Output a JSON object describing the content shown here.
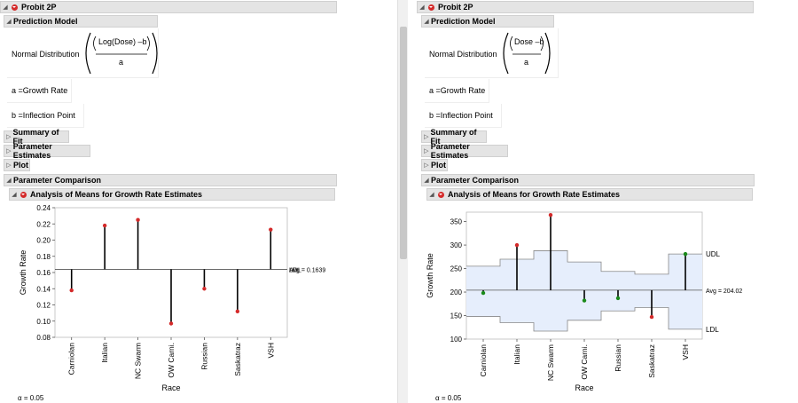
{
  "left": {
    "title": "Probit 2P",
    "model_header": "Prediction Model",
    "dist_label": "Normal Distribution",
    "numerator": "Log(Dose) –b",
    "denominator": "a",
    "a_def": "a =Growth Rate",
    "b_def": "b =Inflection Point",
    "summary": "Summary of Fit",
    "params": "Parameter Estimates",
    "plot": "Plot",
    "comparison": "Parameter Comparison",
    "anom": "Analysis of Means for Growth Rate Estimates",
    "alpha": "α = 0.05"
  },
  "right": {
    "title": "Probit 2P",
    "model_header": "Prediction Model",
    "dist_label": "Normal Distribution",
    "numerator": "Dose –b",
    "denominator": "a",
    "a_def": "a =Growth Rate",
    "b_def": "b =Inflection Point",
    "summary": "Summary of Fit",
    "params": "Parameter Estimates",
    "plot": "Plot",
    "comparison": "Parameter Comparison",
    "anom": "Analysis of Means for Growth Rate Estimates",
    "alpha": "α = 0.05"
  },
  "chart_data": [
    {
      "type": "scatter",
      "categories": [
        "Carniolan",
        "Italian",
        "NC Swarm",
        "OW Carni.",
        "Russian",
        "Saskatraz",
        "VSH"
      ],
      "values": [
        0.138,
        0.218,
        0.225,
        0.097,
        0.14,
        0.112,
        0.213
      ],
      "center": 0.1639,
      "center_label": "Avg = 0.1639",
      "extra_labels": [
        "UDL",
        "LDL"
      ],
      "ylim": [
        0.08,
        0.24
      ],
      "yticks": [
        "0.08",
        "0.10",
        "0.12",
        "0.14",
        "0.16",
        "0.18",
        "0.20",
        "0.22",
        "0.24"
      ],
      "xlabel": "Race",
      "ylabel": "Growth Rate",
      "point_color": "#d42a2a"
    },
    {
      "type": "scatter",
      "categories": [
        "Carniolan",
        "Italian",
        "NC Swarm",
        "OW Carni.",
        "Russian",
        "Saskatraz",
        "VSH"
      ],
      "values": [
        198,
        300,
        364,
        182,
        187,
        147,
        281
      ],
      "center": 204.02,
      "center_label": "Avg = 204.02",
      "udl": [
        255,
        270,
        288,
        264,
        244,
        238,
        281
      ],
      "ldl": [
        148,
        135,
        117,
        140,
        160,
        167,
        121
      ],
      "udl_label": "UDL",
      "ldl_label": "LDL",
      "colors": [
        "#1a8a1a",
        "#d42a2a",
        "#d42a2a",
        "#1a8a1a",
        "#1a8a1a",
        "#d42a2a",
        "#1a8a1a"
      ],
      "ylim": [
        100,
        370
      ],
      "yticks": [
        "100",
        "150",
        "200",
        "250",
        "300",
        "350"
      ],
      "xlabel": "Race",
      "ylabel": "Growth Rate",
      "band_color": "#e6eefc"
    }
  ]
}
